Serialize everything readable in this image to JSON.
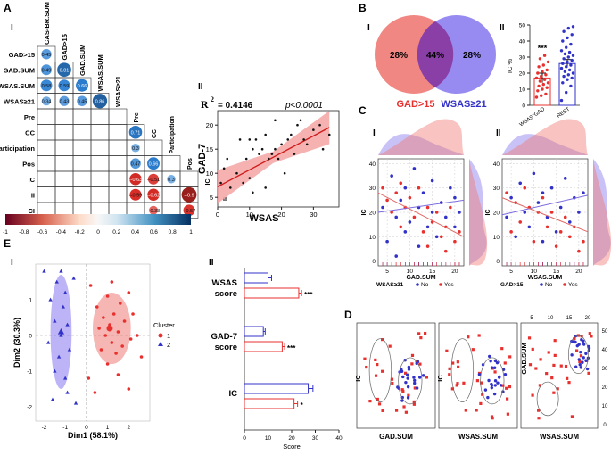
{
  "panel_labels": {
    "A": "A",
    "B": "B",
    "C": "C",
    "D": "D",
    "E": "E"
  },
  "sub_labels": {
    "AI": "I",
    "AII": "II",
    "BI": "I",
    "BII": "II",
    "CI": "I",
    "CII": "II",
    "EI": "I",
    "EII": "II"
  },
  "colors": {
    "red": "#e8312f",
    "blue": "#3232c8",
    "venn_red": "#ef7a74",
    "venn_blue": "#8577ee",
    "venn_overlap": "#8a3fa6",
    "heat_neg": "#8b1a1a",
    "heat_pos": "#1c4f8c",
    "ci_band": "#f4a3a3"
  },
  "chart_data": [
    {
      "id": "A-I",
      "type": "heatmap",
      "col_labels": [
        "CAS-BR.SUM",
        "GAD>15",
        "GAD.SUM",
        "WSAS.SUM",
        "WSAS≥21"
      ],
      "row_labels": [
        "GAD>15",
        "GAD.SUM",
        "WSAS.SUM",
        "WSAS≥21"
      ],
      "lower_rows": [
        "Pre",
        "CC",
        "Participation",
        "Pos",
        "IC",
        "II",
        "CI"
      ],
      "diag_labels": [
        "Pre",
        "CC",
        "Participation",
        "Pos",
        "IC",
        "II"
      ],
      "cells": [
        {
          "r": 0,
          "c": 0,
          "v": 0.45
        },
        {
          "r": 1,
          "c": 0,
          "v": 0.49
        },
        {
          "r": 1,
          "c": 1,
          "v": 0.81
        },
        {
          "r": 2,
          "c": 0,
          "v": 0.58
        },
        {
          "r": 2,
          "c": 1,
          "v": 0.59
        },
        {
          "r": 2,
          "c": 2,
          "v": 0.66
        },
        {
          "r": 3,
          "c": 0,
          "v": 0.34
        },
        {
          "r": 3,
          "c": 1,
          "v": 0.43
        },
        {
          "r": 3,
          "c": 2,
          "v": 0.45
        },
        {
          "r": 3,
          "c": 3,
          "v": 0.86
        },
        {
          "r": 5,
          "c": 5,
          "v": 0.71
        },
        {
          "r": 6,
          "c": 5,
          "v": 0.3
        },
        {
          "r": 7,
          "c": 5,
          "v": 0.47
        },
        {
          "r": 7,
          "c": 6,
          "v": 0.66
        },
        {
          "r": 8,
          "c": 5,
          "v": -0.63
        },
        {
          "r": 8,
          "c": 6,
          "v": -0.51
        },
        {
          "r": 8,
          "c": 7,
          "v": 0.3
        },
        {
          "r": 9,
          "c": 5,
          "v": -0.59
        },
        {
          "r": 9,
          "c": 6,
          "v": -0.62
        },
        {
          "r": 9,
          "c": 8,
          "v": -0.9
        },
        {
          "r": 10,
          "c": 6,
          "v": -0.33
        },
        {
          "r": 10,
          "c": 8,
          "v": -0.57
        }
      ],
      "colorbar_ticks": [
        "-1",
        "-0.8",
        "-0.6",
        "-0.4",
        "-0.2",
        "0",
        "0.2",
        "0.4",
        "0.6",
        "0.8",
        "1"
      ]
    },
    {
      "id": "A-II",
      "type": "scatter",
      "xlabel": "WSAS",
      "ylabel": "GAD-7",
      "r2_label": "R",
      "r2_sup": "2",
      "r2_value": "= 0.4146",
      "p_label": "p<0.0001",
      "xlim": [
        0,
        38
      ],
      "ylim": [
        3,
        23
      ],
      "xticks": [
        "0",
        "10",
        "20",
        "30"
      ],
      "yticks": [
        "5",
        "10",
        "15",
        "20"
      ],
      "x": [
        1,
        2,
        3,
        4,
        6,
        7,
        8,
        9,
        10,
        10,
        11,
        11,
        12,
        13,
        14,
        15,
        15,
        16,
        17,
        18,
        18,
        19,
        20,
        21,
        22,
        23,
        24,
        25,
        26,
        27,
        28,
        30,
        32,
        33,
        35
      ],
      "y": [
        8,
        11,
        13,
        7,
        10,
        17,
        8,
        13,
        9,
        17,
        15,
        6,
        17,
        14,
        15,
        7,
        18,
        13,
        14,
        15,
        21,
        13,
        16,
        10,
        17,
        18,
        14,
        20,
        21,
        17,
        16,
        19,
        20,
        15,
        18
      ],
      "fit": {
        "x0": 0,
        "y0": 7.2,
        "x1": 35,
        "y1": 19.5
      }
    },
    {
      "id": "B-I",
      "type": "venn",
      "left_pct": "28%",
      "overlap_pct": "44%",
      "right_pct": "28%",
      "left_label": "GAD>15",
      "right_label": "WSAS≥21"
    },
    {
      "id": "B-II",
      "type": "bar",
      "ylabel": "IC %",
      "categories": [
        "WSAS*GAD",
        "REST"
      ],
      "values": [
        17,
        26
      ],
      "errors": [
        3,
        2.5
      ],
      "significance": "***",
      "ylim": [
        0,
        50
      ],
      "yticks": [
        "0",
        "10",
        "20",
        "30",
        "40",
        "50"
      ],
      "points": [
        [
          5,
          6,
          7,
          9,
          10,
          11,
          12,
          13,
          14,
          15,
          16,
          17,
          18,
          19,
          20,
          21,
          22,
          24,
          25,
          27,
          29,
          31
        ],
        [
          3,
          8,
          12,
          14,
          16,
          17,
          18,
          19,
          20,
          21,
          22,
          23,
          24,
          25,
          26,
          27,
          28,
          29,
          30,
          31,
          32,
          33,
          34,
          36,
          38,
          40,
          42,
          44,
          46,
          48,
          49
        ]
      ]
    },
    {
      "id": "C-I",
      "type": "scatter",
      "xlabel": "GAD.SUM",
      "ylabel": "IC",
      "legend_title": "WSAS≥21",
      "legend_no": "No",
      "legend_yes": "Yes",
      "xlim": [
        3,
        22
      ],
      "ylim": [
        -2,
        42
      ],
      "xticks": [
        "5",
        "10",
        "15",
        "20"
      ],
      "yticks": [
        "0",
        "10",
        "20",
        "30",
        "40"
      ],
      "blue": [
        [
          4,
          22
        ],
        [
          5,
          8
        ],
        [
          6,
          35
        ],
        [
          7,
          18
        ],
        [
          7,
          2
        ],
        [
          8,
          25
        ],
        [
          9,
          30
        ],
        [
          9,
          12
        ],
        [
          10,
          16
        ],
        [
          11,
          38
        ],
        [
          12,
          22
        ],
        [
          12,
          6
        ],
        [
          13,
          28
        ],
        [
          14,
          14
        ],
        [
          15,
          20
        ],
        [
          15,
          33
        ],
        [
          16,
          10
        ],
        [
          17,
          24
        ],
        [
          18,
          18
        ],
        [
          19,
          30
        ],
        [
          20,
          26
        ],
        [
          20,
          14
        ],
        [
          21,
          20
        ]
      ],
      "red": [
        [
          4,
          30
        ],
        [
          5,
          25
        ],
        [
          6,
          20
        ],
        [
          7,
          28
        ],
        [
          8,
          14
        ],
        [
          8,
          32
        ],
        [
          9,
          22
        ],
        [
          10,
          26
        ],
        [
          11,
          18
        ],
        [
          12,
          30
        ],
        [
          13,
          12
        ],
        [
          14,
          22
        ],
        [
          14,
          6
        ],
        [
          15,
          16
        ],
        [
          16,
          20
        ],
        [
          17,
          10
        ],
        [
          18,
          14
        ],
        [
          18,
          4
        ],
        [
          19,
          22
        ],
        [
          20,
          8
        ],
        [
          21,
          12
        ]
      ],
      "fit_blue": [
        [
          3,
          20
        ],
        [
          22,
          25
        ]
      ],
      "fit_red": [
        [
          3,
          28
        ],
        [
          22,
          10
        ]
      ]
    },
    {
      "id": "C-II",
      "type": "scatter",
      "xlabel": "WSAS.SUM",
      "ylabel": "IC",
      "legend_title": "GAD>15",
      "legend_no": "No",
      "legend_yes": "Yes",
      "xlim": [
        3,
        22
      ],
      "ylim": [
        -2,
        42
      ],
      "xticks": [
        "5",
        "10",
        "15",
        "20"
      ],
      "yticks": [
        "0",
        "10",
        "20",
        "30",
        "40"
      ],
      "blue": [
        [
          4,
          18
        ],
        [
          5,
          26
        ],
        [
          6,
          10
        ],
        [
          7,
          32
        ],
        [
          8,
          20
        ],
        [
          9,
          14
        ],
        [
          10,
          36
        ],
        [
          11,
          24
        ],
        [
          12,
          8
        ],
        [
          12,
          28
        ],
        [
          13,
          18
        ],
        [
          14,
          30
        ],
        [
          15,
          12
        ],
        [
          16,
          22
        ],
        [
          17,
          34
        ],
        [
          18,
          16
        ],
        [
          19,
          26
        ],
        [
          20,
          20
        ],
        [
          21,
          28
        ]
      ],
      "red": [
        [
          4,
          28
        ],
        [
          5,
          12
        ],
        [
          6,
          24
        ],
        [
          7,
          16
        ],
        [
          8,
          30
        ],
        [
          9,
          22
        ],
        [
          10,
          8
        ],
        [
          11,
          20
        ],
        [
          12,
          26
        ],
        [
          13,
          14
        ],
        [
          14,
          20
        ],
        [
          15,
          6
        ],
        [
          16,
          12
        ],
        [
          17,
          18
        ],
        [
          18,
          10
        ],
        [
          19,
          14
        ],
        [
          20,
          4
        ],
        [
          21,
          8
        ]
      ],
      "fit_blue": [
        [
          3,
          19
        ],
        [
          22,
          27
        ]
      ],
      "fit_red": [
        [
          3,
          26
        ],
        [
          22,
          12
        ]
      ]
    },
    {
      "id": "D",
      "type": "scatter",
      "panels": [
        {
          "xlabel": "GAD.SUM",
          "ylabel": "IC"
        },
        {
          "xlabel": "WSAS.SUM",
          "ylabel": "IC"
        },
        {
          "xlabel": "WSAS.SUM",
          "ylabel": "GAD.SUM"
        }
      ],
      "top_ticks": [
        "5",
        "10",
        "15",
        "20"
      ],
      "right_ticks": [
        "0",
        "10",
        "20",
        "30",
        "40",
        "50"
      ]
    },
    {
      "id": "E-I",
      "type": "scatter",
      "xlabel": "Dim1 (58.1%)",
      "ylabel": "Dim2 (30.3%)",
      "legend_title": "Cluster",
      "legend_1": "1",
      "legend_2": "2",
      "xlim": [
        -2.4,
        3.0
      ],
      "ylim": [
        -2.4,
        2.0
      ],
      "xticks": [
        "-2",
        "-1",
        "0",
        "1",
        "2"
      ],
      "yticks": [
        "-2",
        "-1",
        "0",
        "1"
      ],
      "cluster1": [
        [
          0.2,
          1.4
        ],
        [
          0.5,
          0.8
        ],
        [
          0.6,
          0.2
        ],
        [
          0.7,
          -0.4
        ],
        [
          0.8,
          0.5
        ],
        [
          0.9,
          0.0
        ],
        [
          1.0,
          -0.8
        ],
        [
          1.0,
          1.1
        ],
        [
          1.1,
          0.3
        ],
        [
          1.2,
          -0.2
        ],
        [
          1.3,
          0.6
        ],
        [
          1.4,
          -0.5
        ],
        [
          1.5,
          0.1
        ],
        [
          1.6,
          0.9
        ],
        [
          1.7,
          -0.3
        ],
        [
          1.8,
          0.4
        ],
        [
          2.0,
          1.2
        ],
        [
          2.1,
          -0.1
        ],
        [
          2.2,
          0.6
        ],
        [
          2.4,
          0.0
        ],
        [
          2.6,
          -0.6
        ],
        [
          2.0,
          -1.5
        ],
        [
          0.4,
          -1.6
        ],
        [
          0.1,
          -1.2
        ],
        [
          1.5,
          -1.1
        ],
        [
          1.2,
          1.5
        ]
      ],
      "cluster2": [
        [
          -2.0,
          1.8
        ],
        [
          -1.8,
          -0.2
        ],
        [
          -1.7,
          1.0
        ],
        [
          -1.6,
          -1.8
        ],
        [
          -1.5,
          0.4
        ],
        [
          -1.4,
          1.5
        ],
        [
          -1.3,
          -0.6
        ],
        [
          -1.2,
          0.0
        ],
        [
          -1.1,
          0.8
        ],
        [
          -1.0,
          -1.2
        ],
        [
          -0.9,
          0.3
        ],
        [
          -0.8,
          -0.4
        ],
        [
          -1.0,
          1.2
        ],
        [
          -1.5,
          -1.0
        ],
        [
          -0.6,
          1.6
        ],
        [
          -0.5,
          -1.9
        ],
        [
          -1.2,
          1.8
        ],
        [
          -0.9,
          -1.6
        ]
      ],
      "ell1": {
        "cx": 1.2,
        "cy": 0.2,
        "rx": 0.9,
        "ry": 1.0
      },
      "ell2": {
        "cx": -1.2,
        "cy": 0.1,
        "rx": 0.5,
        "ry": 1.6
      }
    },
    {
      "id": "E-II",
      "type": "bar",
      "xlabel": "Score",
      "xlim": [
        0,
        40
      ],
      "xticks": [
        "0",
        "10",
        "20",
        "30",
        "40"
      ],
      "groups": [
        {
          "label_1": "WSAS",
          "label_2": "score",
          "blue": 10,
          "blue_err": 1.5,
          "red": 23,
          "red_err": 1.2,
          "sig": "***"
        },
        {
          "label_1": "GAD-7",
          "label_2": "score",
          "blue": 8,
          "blue_err": 0.8,
          "red": 16,
          "red_err": 1.0,
          "sig": "***"
        },
        {
          "label_1": "IC",
          "label_2": "",
          "blue": 27,
          "blue_err": 2.0,
          "red": 21,
          "red_err": 1.5,
          "sig": "*"
        }
      ]
    }
  ]
}
